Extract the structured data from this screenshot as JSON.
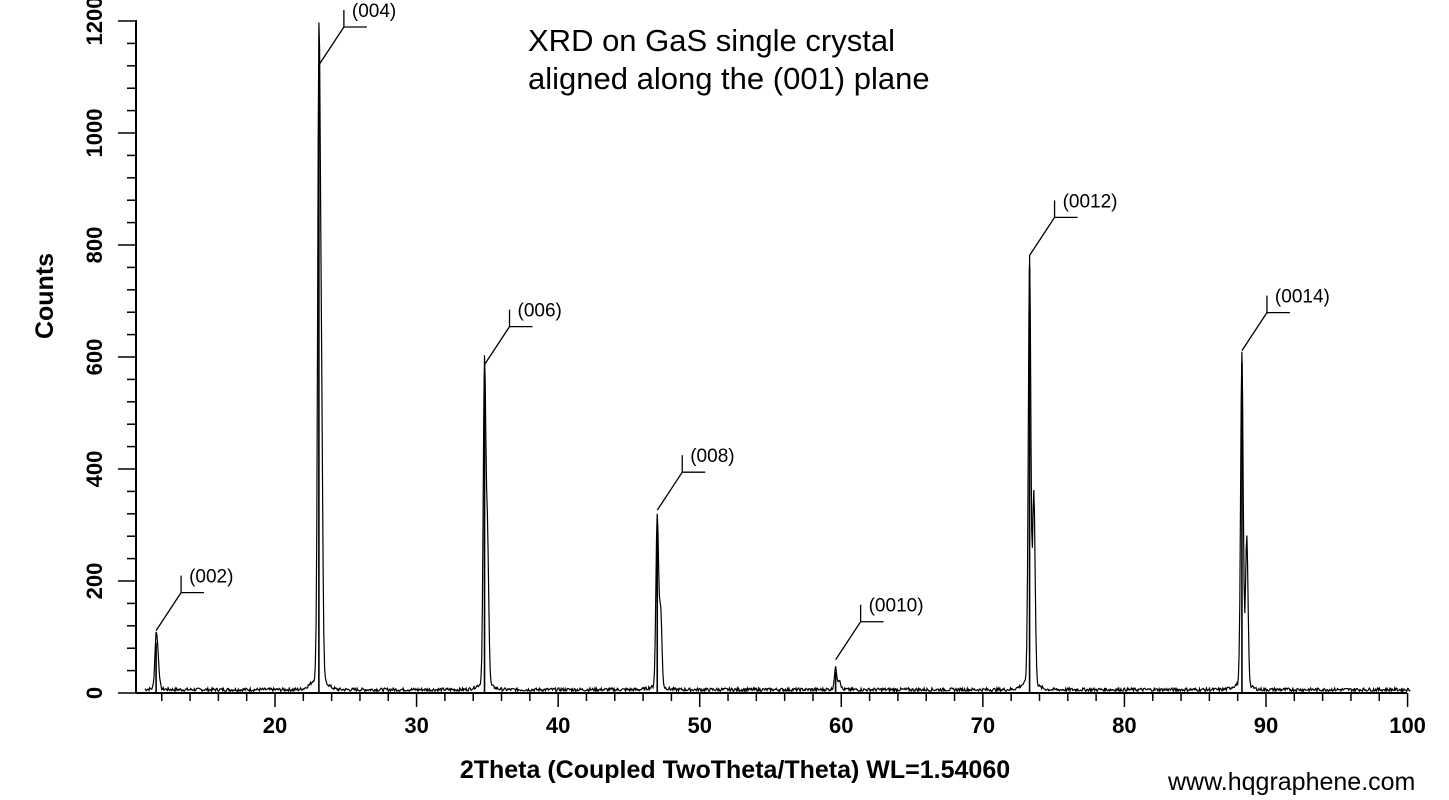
{
  "chart_data": {
    "type": "line",
    "title_lines": [
      "XRD on GaS single crystal",
      "aligned along the (001) plane"
    ],
    "xlabel": "2Theta (Coupled TwoTheta/Theta) WL=1.54060",
    "ylabel": "Counts",
    "xlim": [
      10,
      100
    ],
    "ylim": [
      0,
      1200
    ],
    "x_ticks": [
      20,
      30,
      40,
      50,
      60,
      70,
      80,
      90,
      100
    ],
    "y_ticks": [
      0,
      200,
      400,
      600,
      800,
      1000,
      1200
    ],
    "grid": false,
    "peaks": [
      {
        "label": "(002)",
        "x": 11.6,
        "y": 90
      },
      {
        "label": "(004)",
        "x": 23.1,
        "y": 1100
      },
      {
        "label": "(006)",
        "x": 34.8,
        "y": 565
      },
      {
        "label": "(008)",
        "x": 47.0,
        "y": 305
      },
      {
        "label": "(0010)",
        "x": 59.6,
        "y": 38
      },
      {
        "label": "(0012)",
        "x": 73.3,
        "y": 760
      },
      {
        "label": "(0014)",
        "x": 88.3,
        "y": 590
      }
    ],
    "line_color": "#000000"
  },
  "watermark": "www.hqgraphene.com"
}
